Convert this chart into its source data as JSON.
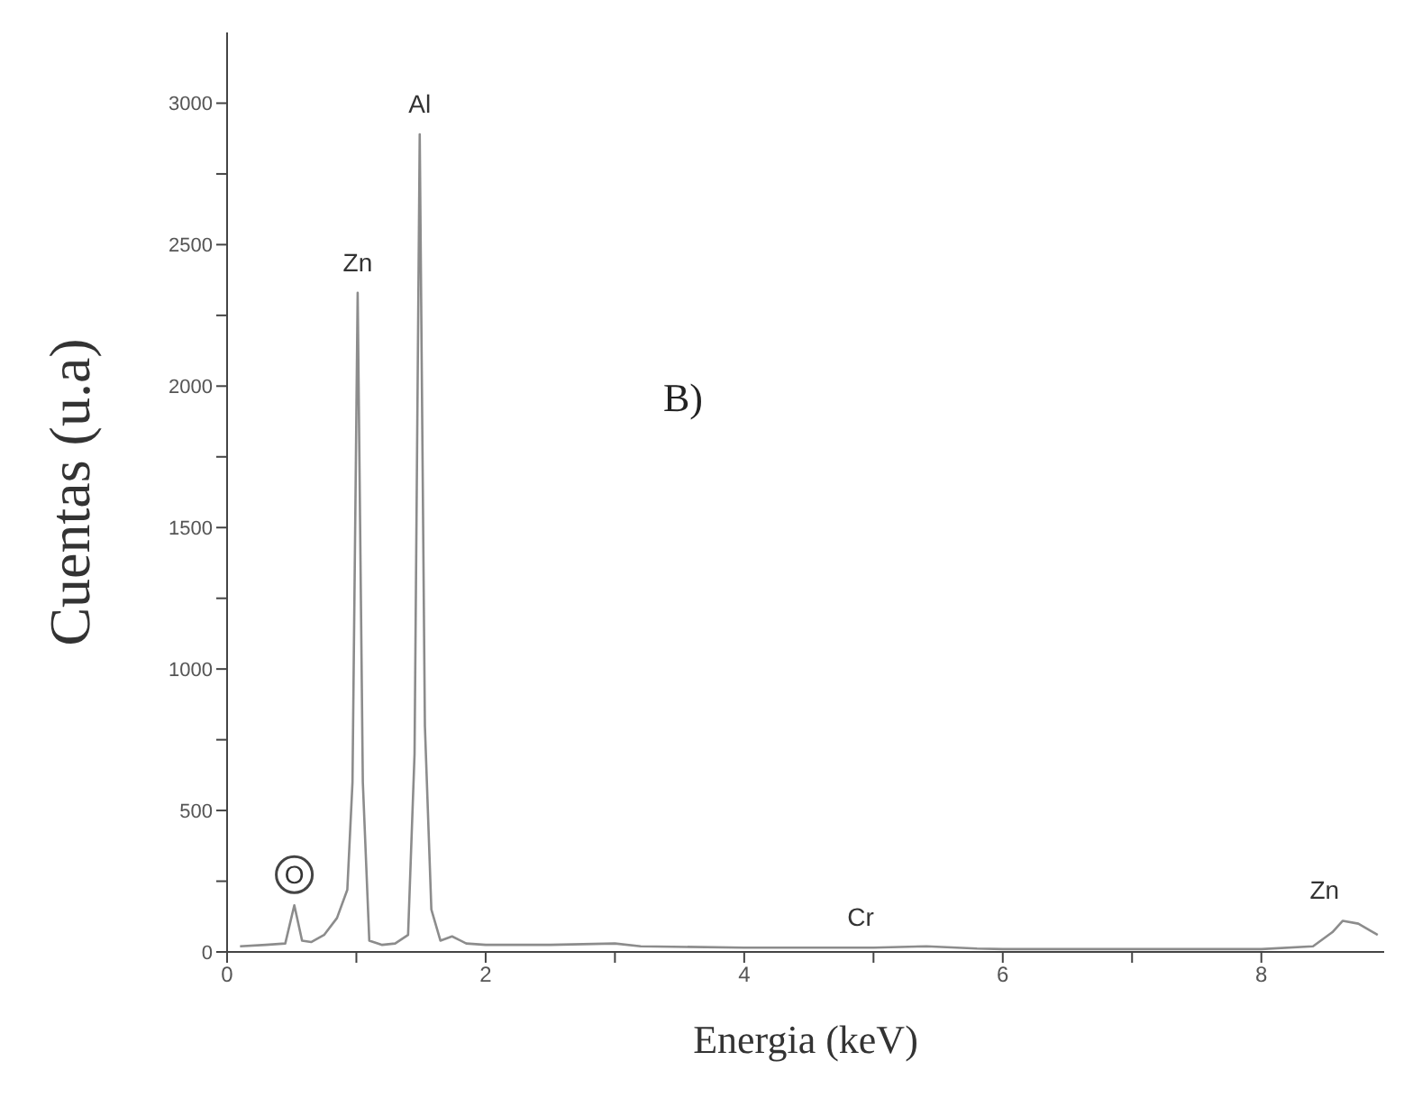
{
  "chart_data": {
    "type": "line",
    "xlabel": "Energia (keV)",
    "ylabel": "Cuentas (u.a)",
    "x": [
      0.1,
      0.3,
      0.45,
      0.52,
      0.58,
      0.65,
      0.75,
      0.85,
      0.93,
      0.97,
      1.01,
      1.05,
      1.1,
      1.2,
      1.3,
      1.4,
      1.45,
      1.49,
      1.53,
      1.58,
      1.65,
      1.74,
      1.85,
      2.0,
      2.5,
      3.0,
      3.2,
      4.0,
      5.0,
      5.41,
      5.8,
      6.0,
      7.0,
      8.0,
      8.4,
      8.55,
      8.63,
      8.75,
      8.9
    ],
    "series": [
      {
        "color": "#8c8c8c",
        "values": [
          20,
          25,
          30,
          165,
          40,
          35,
          60,
          120,
          220,
          600,
          2330,
          600,
          40,
          25,
          30,
          60,
          700,
          2890,
          800,
          150,
          40,
          55,
          30,
          25,
          25,
          30,
          20,
          15,
          15,
          20,
          12,
          10,
          10,
          10,
          20,
          70,
          110,
          100,
          60
        ]
      }
    ],
    "xlim": [
      0,
      8.95
    ],
    "ylim": [
      0,
      3250
    ],
    "xticks": [
      0,
      {
        "value": 1,
        "label": null
      },
      2,
      {
        "value": 3,
        "label": null
      },
      4,
      {
        "value": 5,
        "label": null
      },
      6,
      {
        "value": 7,
        "label": null
      },
      8
    ],
    "yticks": [
      0,
      {
        "value": 250,
        "label": null
      },
      500,
      {
        "value": 750,
        "label": null
      },
      1000,
      {
        "value": 1250,
        "label": null
      },
      1500,
      {
        "value": 1750,
        "label": null
      },
      2000,
      {
        "value": 2250,
        "label": null
      },
      2500,
      {
        "value": 2750,
        "label": null
      },
      3000
    ],
    "annotations": [
      {
        "text": "Al",
        "x": 1.49,
        "y": 2890
      },
      {
        "text": "Zn",
        "x": 1.01,
        "y": 2330
      },
      {
        "text": "O",
        "x": 0.52,
        "y": 165
      },
      {
        "text": "Cr",
        "x": 4.9,
        "y": 15
      },
      {
        "text": "Zn",
        "x": 8.63,
        "y": 110
      },
      "B)"
    ],
    "marker": "none",
    "line_style": "solid",
    "grid": false,
    "legend": false
  }
}
